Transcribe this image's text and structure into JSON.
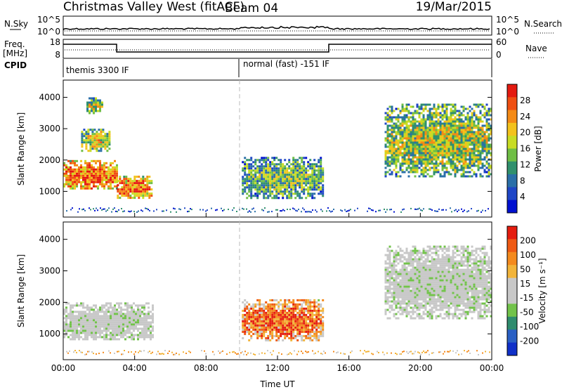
{
  "header": {
    "station": "Christmas Valley West (fitACF)",
    "beam": "Beam 04",
    "date": "19/Mar/2015"
  },
  "noise_panel": {
    "left_label": "N.Sky",
    "left_ticks": [
      "10^5",
      "10^0"
    ],
    "right_label": "N.Search",
    "right_ticks": [
      "10^5",
      "10^0"
    ]
  },
  "freq_panel": {
    "left_label_1": "Freq.",
    "left_label_2": "[MHz]",
    "left_ticks": [
      "18",
      "8"
    ],
    "right_label": "Nave",
    "right_ticks": [
      "60",
      "0"
    ]
  },
  "cpid": {
    "label": "CPID",
    "segments": [
      {
        "name": "themis 3300 IF",
        "start_hour": 0,
        "end_hour": 10
      },
      {
        "name": "normal (fast) -151 IF",
        "start_hour": 10,
        "end_hour": 24
      }
    ]
  },
  "chart_data": [
    {
      "type": "heatmap",
      "name": "power",
      "ylabel": "Slant Range [km]",
      "yticks": [
        1000,
        2000,
        3000,
        4000
      ],
      "ylim": [
        180,
        4550
      ],
      "xlim": [
        0,
        24
      ],
      "colorbar": {
        "label": "Power [dB]",
        "ticks": [
          "4",
          "8",
          "12",
          "16",
          "20",
          "24",
          "28"
        ],
        "colors": [
          "#0010d0",
          "#1f46c6",
          "#2a6fa8",
          "#30906d",
          "#6fbe45",
          "#c8dc24",
          "#f3c21c",
          "#f48a16",
          "#ef4f12",
          "#e41a10"
        ]
      },
      "echo_regions": [
        {
          "t_start": 0.0,
          "t_end": 3.0,
          "range_min": 1100,
          "range_max": 2000,
          "level": 0.85
        },
        {
          "t_start": 3.0,
          "t_end": 5.0,
          "range_min": 800,
          "range_max": 1500,
          "level": 0.8
        },
        {
          "t_start": 1.0,
          "t_end": 2.6,
          "range_min": 2300,
          "range_max": 3000,
          "level": 0.6
        },
        {
          "t_start": 1.3,
          "t_end": 2.2,
          "range_min": 3500,
          "range_max": 4000,
          "level": 0.55
        },
        {
          "t_start": 10.0,
          "t_end": 14.5,
          "range_min": 800,
          "range_max": 2100,
          "level": 0.45
        },
        {
          "t_start": 18.0,
          "t_end": 24.0,
          "range_min": 1500,
          "range_max": 3800,
          "level": 0.55
        }
      ]
    },
    {
      "type": "heatmap",
      "name": "velocity",
      "ylabel": "Slant Range [km]",
      "yticks": [
        1000,
        2000,
        3000,
        4000
      ],
      "ylim": [
        180,
        4550
      ],
      "xlim": [
        0,
        24
      ],
      "xticks": [
        "00:00",
        "04:00",
        "08:00",
        "12:00",
        "16:00",
        "20:00",
        "00:00"
      ],
      "xlabel": "Time UT",
      "colorbar": {
        "label": "Velocity [m s⁻¹]",
        "ticks": [
          "200",
          "100",
          "50",
          "15",
          "-15",
          "-50",
          "-100",
          "-200"
        ],
        "colors": [
          "#1030c8",
          "#2a60c4",
          "#2f8c6e",
          "#72c34a",
          "#c8c8c8",
          "#c8c8c8",
          "#f2b43a",
          "#f48a1e",
          "#ef5a14",
          "#e51d0f"
        ]
      },
      "echo_regions": [
        {
          "t_start": 0.0,
          "t_end": 5.0,
          "range_min": 800,
          "range_max": 2000,
          "level": 0.5
        },
        {
          "t_start": 10.0,
          "t_end": 14.5,
          "range_min": 800,
          "range_max": 2100,
          "level": 0.85
        },
        {
          "t_start": 18.0,
          "t_end": 24.0,
          "range_min": 1500,
          "range_max": 3800,
          "level": 0.5
        }
      ]
    }
  ]
}
